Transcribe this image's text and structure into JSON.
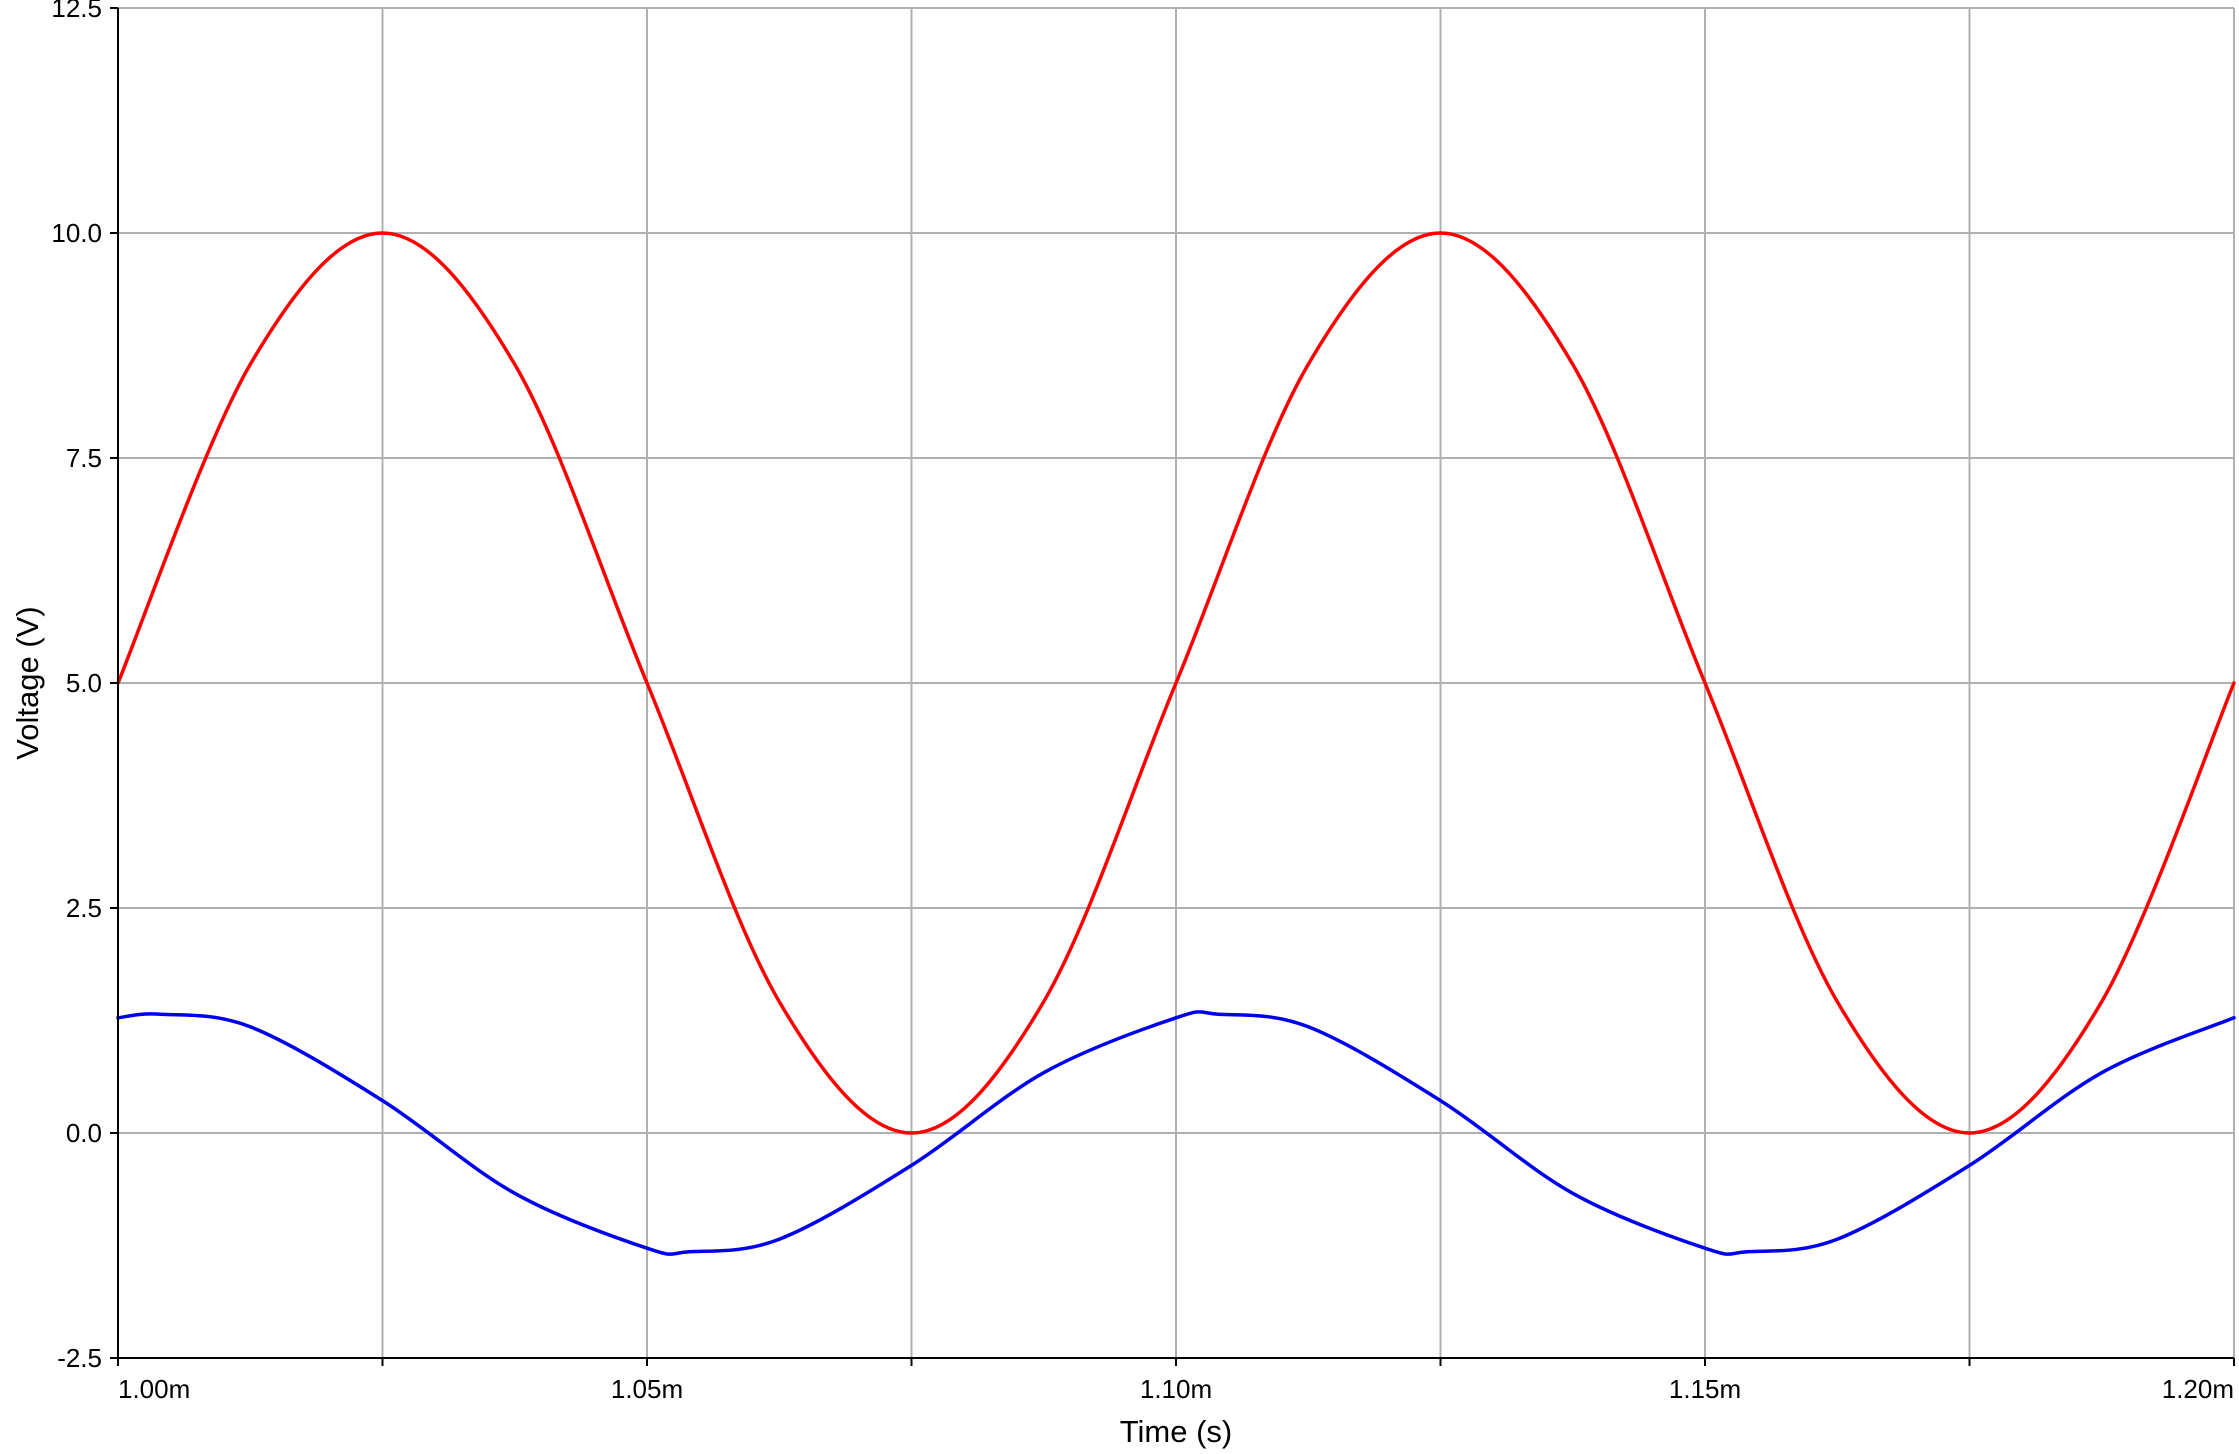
{
  "chart_data": {
    "type": "line",
    "title": "",
    "xlabel": "Time (s)",
    "ylabel": "Voltage (V)",
    "xlim": [
      0.001,
      0.0012
    ],
    "ylim": [
      -2.5,
      12.5
    ],
    "grid": true,
    "x_ticks": [
      {
        "value": 0.001,
        "label": "1.00m"
      },
      {
        "value": 0.00105,
        "label": "1.05m"
      },
      {
        "value": 0.0011,
        "label": "1.10m"
      },
      {
        "value": 0.00115,
        "label": "1.15m"
      },
      {
        "value": 0.0012,
        "label": "1.20m"
      }
    ],
    "x_minor_gridlines": [
      0.001025,
      0.001075,
      0.001125,
      0.001175
    ],
    "y_ticks": [
      {
        "value": -2.5,
        "label": "-2.5"
      },
      {
        "value": 0,
        "label": "0.0"
      },
      {
        "value": 2.5,
        "label": "2.5"
      },
      {
        "value": 5,
        "label": "5.0"
      },
      {
        "value": 7.5,
        "label": "7.5"
      },
      {
        "value": 10,
        "label": "10.0"
      },
      {
        "value": 12.5,
        "label": "12.5"
      }
    ],
    "series": [
      {
        "color": "#ff0000",
        "x": [
          0.001,
          0.0010125,
          0.001025,
          0.0010375,
          0.00105,
          0.0010625,
          0.001075,
          0.0010875,
          0.0011,
          0.0011125,
          0.001125,
          0.0011375,
          0.00115,
          0.0011625,
          0.001175,
          0.0011875,
          0.0012
        ],
        "values": [
          5.0,
          8.54,
          10.0,
          8.54,
          5.0,
          1.46,
          0.0,
          1.46,
          5.0,
          8.54,
          10.0,
          8.54,
          5.0,
          1.46,
          0.0,
          1.46,
          5.0
        ]
      },
      {
        "color": "#0000ee",
        "x": [
          0.001,
          0.001004,
          0.0010125,
          0.001025,
          0.0010375,
          0.00105,
          0.001054,
          0.0010625,
          0.001075,
          0.0010875,
          0.0011,
          0.001104,
          0.0011125,
          0.001125,
          0.0011375,
          0.00115,
          0.001154,
          0.0011625,
          0.001175,
          0.0011875,
          0.0012
        ],
        "values": [
          1.28,
          1.32,
          1.18,
          0.36,
          -0.67,
          -1.28,
          -1.32,
          -1.18,
          -0.36,
          0.67,
          1.28,
          1.32,
          1.18,
          0.36,
          -0.67,
          -1.28,
          -1.32,
          -1.18,
          -0.36,
          0.67,
          1.28
        ]
      }
    ]
  }
}
